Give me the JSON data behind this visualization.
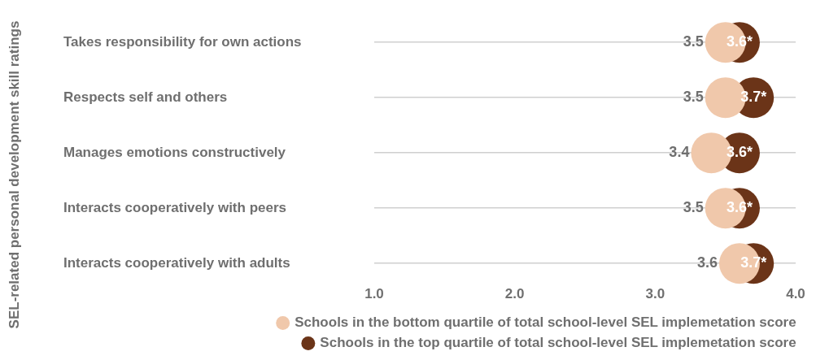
{
  "chart_data": {
    "type": "scatter",
    "orientation": "horizontal",
    "ylabel": "SEL-related personal development skill ratings",
    "categories": [
      "Takes responsibility for own actions",
      "Respects self and others",
      "Manages emotions constructively",
      "Interacts cooperatively with peers",
      "Interacts cooperatively with adults"
    ],
    "series": [
      {
        "name": "Schools in the bottom quartile of total school-level SEL implemetation score",
        "color": "#f0c8ab",
        "values": [
          3.5,
          3.5,
          3.4,
          3.5,
          3.6
        ],
        "value_labels": [
          "3.5",
          "3.5",
          "3.4",
          "3.5",
          "3.6"
        ]
      },
      {
        "name": "Schools in the top quartile of total school-level SEL implemetation score",
        "color": "#6b3418",
        "values": [
          3.6,
          3.7,
          3.6,
          3.6,
          3.7
        ],
        "value_labels": [
          "3.6*",
          "3.7*",
          "3.6*",
          "3.6*",
          "3.7*"
        ]
      }
    ],
    "xlim": [
      1,
      4
    ],
    "xticks": [
      {
        "value": 1,
        "label": "1.0"
      },
      {
        "value": 2,
        "label": "2.0"
      },
      {
        "value": 3,
        "label": "3.0"
      },
      {
        "value": 4,
        "label": "4.0"
      }
    ],
    "grid": "y",
    "legend": "bottom",
    "marker": "circle"
  }
}
